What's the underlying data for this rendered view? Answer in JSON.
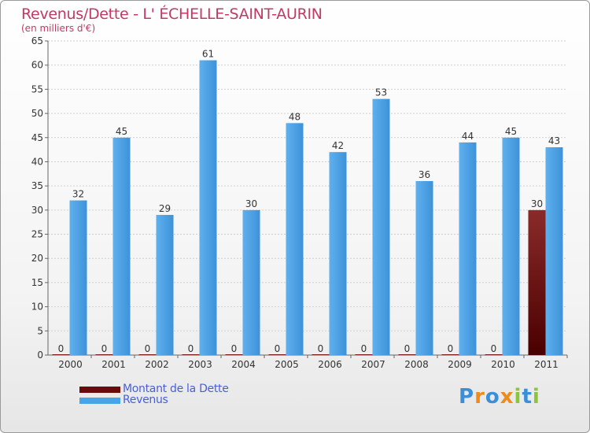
{
  "header": {
    "title": "Revenus/Dette - L' ÉCHELLE-SAINT-AURIN",
    "subtitle": "(en milliers d'€)"
  },
  "colors": {
    "revenus": "#4aa3e6",
    "revenus_dark": "#2b78c0",
    "dette": "#7a1a1a",
    "dette_dark": "#4a0000",
    "title": "#c03a63",
    "legend_text": "#4a5fd6"
  },
  "chart_data": {
    "type": "bar",
    "title": "Revenus/Dette - L' ÉCHELLE-SAINT-AURIN",
    "ylabel": "(en milliers d'€)",
    "xlabel": "",
    "categories": [
      "2000",
      "2001",
      "2002",
      "2003",
      "2004",
      "2005",
      "2006",
      "2007",
      "2008",
      "2009",
      "2010",
      "2011"
    ],
    "series": [
      {
        "name": "Montant de la Dette",
        "values": [
          0,
          0,
          0,
          0,
          0,
          0,
          0,
          0,
          0,
          0,
          0,
          30
        ]
      },
      {
        "name": "Revenus",
        "values": [
          32,
          45,
          29,
          61,
          30,
          48,
          42,
          53,
          36,
          44,
          45,
          43
        ]
      }
    ],
    "ylim": [
      0,
      65
    ],
    "yticks": [
      0,
      5,
      10,
      15,
      20,
      25,
      30,
      35,
      40,
      45,
      50,
      55,
      60,
      65
    ],
    "grid": true,
    "legend_position": "bottom-left"
  },
  "legend": {
    "items": [
      {
        "label": "Montant de la Dette"
      },
      {
        "label": "Revenus"
      }
    ]
  },
  "logo": {
    "text": "Proxiti"
  }
}
